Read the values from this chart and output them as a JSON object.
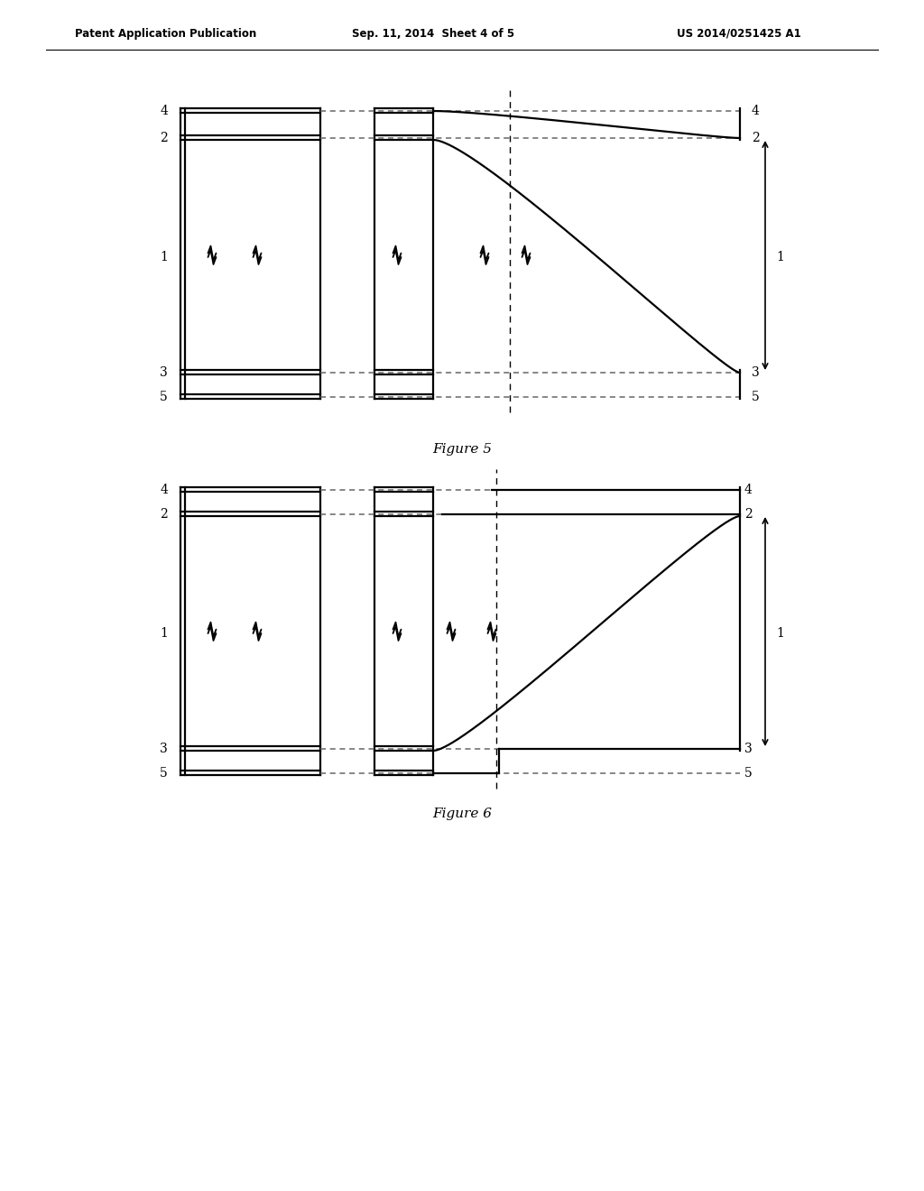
{
  "header_left": "Patent Application Publication",
  "header_mid": "Sep. 11, 2014  Sheet 4 of 5",
  "header_right": "US 2014/0251425 A1",
  "fig5_title": "Figure 5",
  "fig6_title": "Figure 6",
  "bg_color": "#ffffff",
  "lc": "#000000",
  "dc": "#666666"
}
